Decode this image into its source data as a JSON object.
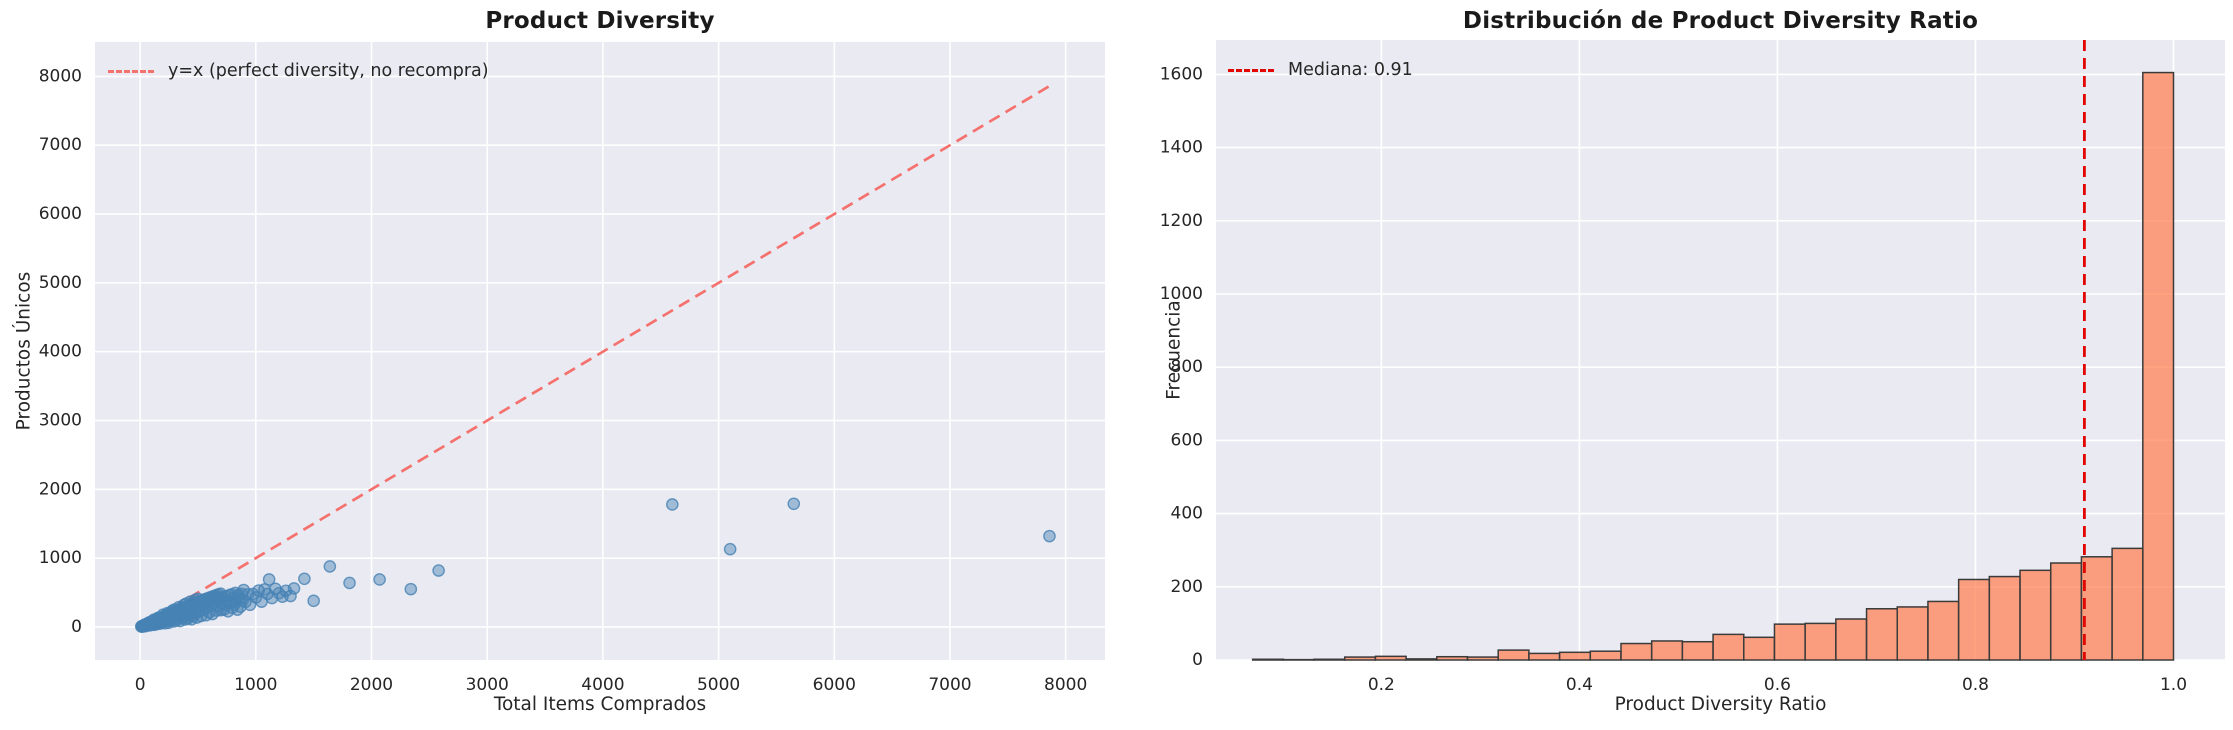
{
  "colors": {
    "figure_bg": "#ffffff",
    "panel_bg": "#eaeaf2",
    "grid": "#ffffff",
    "text": "#262626",
    "scatter_point": "#4682b4",
    "identity_line": "#f4716e",
    "bar_fill": "#ff7f50",
    "bar_edge": "#3b3b3b",
    "median_line": "#e10600"
  },
  "chart_data": [
    {
      "type": "scatter",
      "title": "Product Diversity",
      "xlabel": "Total Items Comprados",
      "ylabel": "Productos Únicos",
      "legend_label": "y=x (perfect diversity, no recompra)",
      "xlim": [
        -390,
        8340
      ],
      "ylim": [
        -480,
        8500
      ],
      "grid": true,
      "legend_position": "upper-left",
      "xticks": [
        {
          "v": 0,
          "t": "0"
        },
        {
          "v": 1000,
          "t": "1000"
        },
        {
          "v": 2000,
          "t": "2000"
        },
        {
          "v": 3000,
          "t": "3000"
        },
        {
          "v": 4000,
          "t": "4000"
        },
        {
          "v": 5000,
          "t": "5000"
        },
        {
          "v": 6000,
          "t": "6000"
        },
        {
          "v": 7000,
          "t": "7000"
        },
        {
          "v": 8000,
          "t": "8000"
        }
      ],
      "yticks": [
        {
          "v": 0,
          "t": "0"
        },
        {
          "v": 1000,
          "t": "1000"
        },
        {
          "v": 2000,
          "t": "2000"
        },
        {
          "v": 3000,
          "t": "3000"
        },
        {
          "v": 4000,
          "t": "4000"
        },
        {
          "v": 5000,
          "t": "5000"
        },
        {
          "v": 6000,
          "t": "6000"
        },
        {
          "v": 7000,
          "t": "7000"
        },
        {
          "v": 8000,
          "t": "8000"
        }
      ],
      "identity_line": {
        "x1": 0,
        "y1": 0,
        "x2": 7900,
        "y2": 7900,
        "style": "dashed"
      },
      "points": [
        [
          10,
          8
        ],
        [
          14,
          6
        ],
        [
          18,
          11
        ],
        [
          22,
          7
        ],
        [
          26,
          19
        ],
        [
          30,
          14
        ],
        [
          34,
          13
        ],
        [
          38,
          34
        ],
        [
          42,
          24
        ],
        [
          46,
          12
        ],
        [
          50,
          34
        ],
        [
          54,
          26
        ],
        [
          58,
          45
        ],
        [
          62,
          22
        ],
        [
          66,
          40
        ],
        [
          70,
          29
        ],
        [
          74,
          63
        ],
        [
          78,
          43
        ],
        [
          82,
          23
        ],
        [
          86,
          56
        ],
        [
          90,
          74
        ],
        [
          94,
          42
        ],
        [
          98,
          62
        ],
        [
          102,
          31
        ],
        [
          106,
          76
        ],
        [
          110,
          57
        ],
        [
          114,
          43
        ],
        [
          118,
          106
        ],
        [
          122,
          71
        ],
        [
          126,
          32
        ],
        [
          130,
          88
        ],
        [
          134,
          64
        ],
        [
          138,
          108
        ],
        [
          142,
          50
        ],
        [
          146,
          88
        ],
        [
          150,
          63
        ],
        [
          154,
          131
        ],
        [
          158,
          87
        ],
        [
          162,
          45
        ],
        [
          166,
          108
        ],
        [
          170,
          139
        ],
        [
          174,
          78
        ],
        [
          178,
          112
        ],
        [
          182,
          55
        ],
        [
          186,
          134
        ],
        [
          190,
          99
        ],
        [
          194,
          74
        ],
        [
          198,
          178
        ],
        [
          205,
          92
        ],
        [
          210,
          131
        ],
        [
          215,
          54
        ],
        [
          220,
          158
        ],
        [
          225,
          117
        ],
        [
          230,
          87
        ],
        [
          235,
          200
        ],
        [
          240,
          139
        ],
        [
          245,
          61
        ],
        [
          250,
          170
        ],
        [
          255,
          122
        ],
        [
          260,
          203
        ],
        [
          265,
          93
        ],
        [
          270,
          162
        ],
        [
          275,
          116
        ],
        [
          280,
          238
        ],
        [
          285,
          157
        ],
        [
          290,
          81
        ],
        [
          295,
          192
        ],
        [
          300,
          255
        ],
        [
          305,
          137
        ],
        [
          310,
          195
        ],
        [
          315,
          95
        ],
        [
          320,
          230
        ],
        [
          325,
          169
        ],
        [
          330,
          125
        ],
        [
          335,
          288
        ],
        [
          340,
          197
        ],
        [
          345,
          86
        ],
        [
          350,
          238
        ],
        [
          355,
          185
        ],
        [
          360,
          281
        ],
        [
          365,
          128
        ],
        [
          370,
          222
        ],
        [
          375,
          158
        ],
        [
          380,
          323
        ],
        [
          385,
          212
        ],
        [
          390,
          109
        ],
        [
          395,
          257
        ],
        [
          400,
          340
        ],
        [
          405,
          182
        ],
        [
          410,
          267
        ],
        [
          415,
          125
        ],
        [
          420,
          302
        ],
        [
          425,
          221
        ],
        [
          430,
          163
        ],
        [
          435,
          370
        ],
        [
          440,
          255
        ],
        [
          445,
          111
        ],
        [
          450,
          306
        ],
        [
          455,
          237
        ],
        [
          460,
          359
        ],
        [
          465,
          163
        ],
        [
          470,
          338
        ],
        [
          475,
          200
        ],
        [
          480,
          394
        ],
        [
          485,
          267
        ],
        [
          490,
          137
        ],
        [
          495,
          322
        ],
        [
          500,
          410
        ],
        [
          508,
          229
        ],
        [
          517,
          326
        ],
        [
          526,
          158
        ],
        [
          535,
          321
        ],
        [
          544,
          386
        ],
        [
          553,
          249
        ],
        [
          562,
          354
        ],
        [
          571,
          171
        ],
        [
          580,
          360
        ],
        [
          589,
          295
        ],
        [
          598,
          209
        ],
        [
          607,
          419
        ],
        [
          616,
          308
        ],
        [
          625,
          188
        ],
        [
          634,
          393
        ],
        [
          643,
          347
        ],
        [
          652,
          404
        ],
        [
          661,
          238
        ],
        [
          670,
          429
        ],
        [
          679,
          306
        ],
        [
          688,
          420
        ],
        [
          697,
          244
        ],
        [
          706,
          339
        ],
        [
          715,
          429
        ],
        [
          724,
          253
        ],
        [
          733,
          447
        ],
        [
          742,
          319
        ],
        [
          751,
          383
        ],
        [
          760,
          228
        ],
        [
          769,
          461
        ],
        [
          778,
          350
        ],
        [
          787,
          472
        ],
        [
          796,
          278
        ],
        [
          805,
          419
        ],
        [
          814,
          326
        ],
        [
          823,
          494
        ],
        [
          832,
          374
        ],
        [
          841,
          252
        ],
        [
          850,
          467
        ],
        [
          859,
          412
        ],
        [
          868,
          295
        ],
        [
          877,
          482
        ],
        [
          886,
          390
        ],
        [
          895,
          537
        ],
        [
          910,
          364
        ],
        [
          930,
          475
        ],
        [
          950,
          323
        ],
        [
          975,
          480
        ],
        [
          1000,
          430
        ],
        [
          1025,
          530
        ],
        [
          1050,
          368
        ],
        [
          1075,
          545
        ],
        [
          1100,
          480
        ],
        [
          1115,
          690
        ],
        [
          1140,
          420
        ],
        [
          1170,
          555
        ],
        [
          1200,
          490
        ],
        [
          1230,
          440
        ],
        [
          1260,
          525
        ],
        [
          1300,
          450
        ],
        [
          1330,
          560
        ],
        [
          35,
          20
        ],
        [
          55,
          38
        ],
        [
          75,
          50
        ],
        [
          95,
          70
        ],
        [
          115,
          85
        ],
        [
          135,
          95
        ],
        [
          155,
          115
        ],
        [
          175,
          125
        ],
        [
          195,
          145
        ],
        [
          215,
          160
        ],
        [
          235,
          175
        ],
        [
          255,
          190
        ],
        [
          275,
          205
        ],
        [
          295,
          220
        ],
        [
          315,
          235
        ],
        [
          335,
          250
        ],
        [
          355,
          262
        ],
        [
          375,
          278
        ],
        [
          395,
          292
        ],
        [
          415,
          305
        ],
        [
          435,
          318
        ],
        [
          455,
          332
        ],
        [
          475,
          348
        ],
        [
          495,
          362
        ],
        [
          515,
          375
        ],
        [
          535,
          388
        ],
        [
          555,
          400
        ],
        [
          575,
          412
        ],
        [
          595,
          424
        ],
        [
          615,
          436
        ],
        [
          635,
          448
        ],
        [
          655,
          460
        ],
        [
          675,
          472
        ],
        [
          695,
          484
        ],
        [
          60,
          30
        ],
        [
          120,
          60
        ],
        [
          180,
          95
        ],
        [
          240,
          125
        ],
        [
          300,
          160
        ],
        [
          360,
          195
        ],
        [
          1420,
          700
        ],
        [
          1500,
          380
        ],
        [
          1640,
          880
        ],
        [
          1810,
          640
        ],
        [
          2070,
          690
        ],
        [
          2340,
          550
        ],
        [
          2580,
          820
        ],
        [
          4600,
          1780
        ],
        [
          5100,
          1130
        ],
        [
          5650,
          1790
        ],
        [
          7860,
          1320
        ]
      ]
    },
    {
      "type": "bar",
      "subtype": "histogram",
      "title": "Distribución de Product Diversity Ratio",
      "xlabel": "Product Diversity Ratio",
      "ylabel": "Frecuencia",
      "legend_label": "Mediana: 0.91",
      "median": 0.91,
      "xlim": [
        0.033,
        1.052
      ],
      "ylim": [
        0,
        1694
      ],
      "grid": true,
      "legend_position": "upper-left",
      "bin_start": 0.07,
      "bin_width": 0.031,
      "xticks": [
        {
          "v": 0.2,
          "t": "0.2"
        },
        {
          "v": 0.4,
          "t": "0.4"
        },
        {
          "v": 0.6,
          "t": "0.6"
        },
        {
          "v": 0.8,
          "t": "0.8"
        },
        {
          "v": 1.0,
          "t": "1.0"
        }
      ],
      "yticks": [
        {
          "v": 0,
          "t": "0"
        },
        {
          "v": 200,
          "t": "200"
        },
        {
          "v": 400,
          "t": "400"
        },
        {
          "v": 600,
          "t": "600"
        },
        {
          "v": 800,
          "t": "800"
        },
        {
          "v": 1000,
          "t": "1000"
        },
        {
          "v": 1200,
          "t": "1200"
        },
        {
          "v": 1400,
          "t": "1400"
        },
        {
          "v": 1600,
          "t": "1600"
        }
      ],
      "frequencies": [
        2,
        1,
        2,
        8,
        10,
        3,
        9,
        8,
        27,
        18,
        21,
        24,
        45,
        52,
        50,
        70,
        62,
        98,
        100,
        112,
        140,
        145,
        160,
        220,
        228,
        245,
        265,
        282,
        305,
        1605
      ]
    }
  ]
}
